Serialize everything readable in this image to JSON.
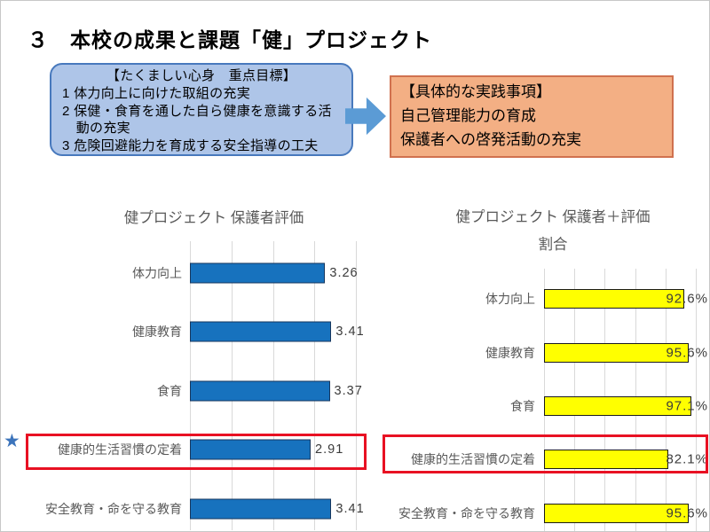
{
  "slide": {
    "title": "３　本校の成果と課題「健」プロジェクト",
    "goal_box": {
      "heading": "【たくましい心身　重点目標】",
      "items": [
        "1 体力向上に向けた取組の充実",
        "2 保健・食育を通した自ら健康を意識する活動の充実",
        "3 危険回避能力を育成する安全指導の工夫"
      ]
    },
    "practice_box": {
      "heading": "【具体的な実践事項】",
      "lines": [
        "自己管理能力の育成",
        "保護者への啓発活動の充実"
      ]
    }
  },
  "chart_data": [
    {
      "type": "bar",
      "orientation": "horizontal",
      "title": "健プロジェクト 保護者評価",
      "title_lines": [
        "健プロジェクト 保護者評価"
      ],
      "categories": [
        "体力向上",
        "健康教育",
        "食育",
        "健康的生活習慣の定着",
        "安全教育・命を守る教育"
      ],
      "values": [
        3.26,
        3.41,
        3.37,
        2.91,
        3.41
      ],
      "value_labels": [
        "3.26",
        "3.41",
        "3.37",
        "2.91",
        "3.41"
      ],
      "xlim": [
        0,
        4
      ],
      "grid_step": 1,
      "grid": true,
      "legend": false,
      "bar_color": "#1772BE",
      "bar_border_color": "#17375E",
      "value_label_position": "outside-end",
      "highlight_category": "健康的生活習慣の定着",
      "highlight_marker": "star"
    },
    {
      "type": "bar",
      "orientation": "horizontal",
      "title": "健プロジェクト 保護者＋評価 割合",
      "title_lines": [
        "健プロジェクト 保護者＋評価",
        "割合"
      ],
      "categories": [
        "体力向上",
        "健康教育",
        "食育",
        "健康的生活習慣の定着",
        "安全教育・命を守る教育"
      ],
      "values": [
        92.6,
        95.6,
        97.1,
        82.1,
        95.6
      ],
      "value_labels": [
        "92.6%",
        "95.6%",
        "97.1%",
        "82.1%",
        "95.6%"
      ],
      "xlim": [
        0,
        100
      ],
      "grid_step": 20,
      "grid": true,
      "legend": false,
      "bar_color": "#FFFF00",
      "bar_border_color": "#1A1A1A",
      "value_label_position": "inside-end",
      "highlight_category": "健康的生活習慣の定着"
    }
  ],
  "colors": {
    "goal_box_fill": "#AEC5E8",
    "goal_box_border": "#4879BD",
    "practice_box_fill": "#F3AF84",
    "practice_box_border": "#D0714F",
    "arrow_blue": "#5B9BD5",
    "star_blue": "#3C74BB",
    "highlight_red": "#E81123",
    "chart_text_gray": "#595959",
    "gridline_gray": "#D9D9D9"
  }
}
